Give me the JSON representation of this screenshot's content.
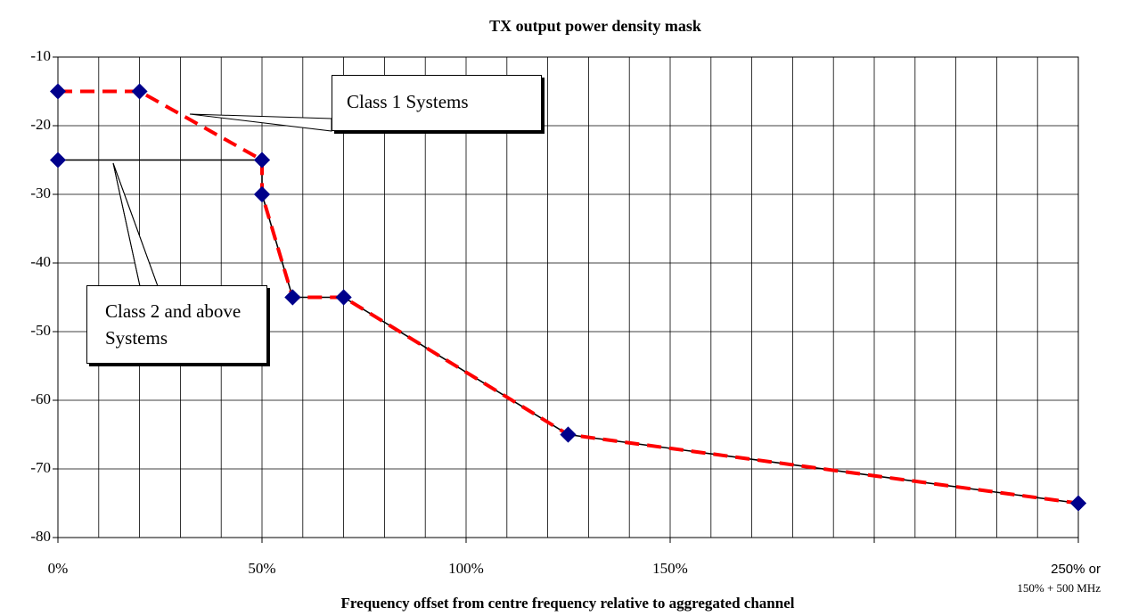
{
  "chart_data": {
    "type": "line",
    "title": "TX output power density mask",
    "x_label": "Frequency offset from centre frequency relative to aggregated channel",
    "xlim": [
      0,
      250
    ],
    "ylim": [
      -80,
      -10
    ],
    "xticks": [
      {
        "value": 0,
        "label": "0%"
      },
      {
        "value": 50,
        "label": "50%"
      },
      {
        "value": 100,
        "label": "100%"
      },
      {
        "value": 150,
        "label": "150%"
      },
      {
        "value": 200,
        "label": null
      },
      {
        "value": 250,
        "label": "250% or",
        "label2": "150% + 500 MHz"
      }
    ],
    "xgrid": [
      0,
      10,
      20,
      30,
      40,
      50,
      60,
      70,
      80,
      90,
      100,
      110,
      120,
      130,
      140,
      150,
      160,
      170,
      180,
      190,
      200,
      210,
      220,
      230,
      240,
      250
    ],
    "yticks": [
      -10,
      -20,
      -30,
      -40,
      -50,
      -60,
      -70,
      -80
    ],
    "grid": true,
    "marker_color": "#00008b",
    "series": [
      {
        "name": "Class 1 Systems",
        "color": "#ff0000",
        "dashed": true,
        "x": [
          0,
          20,
          50,
          50,
          57.5,
          70,
          125,
          250
        ],
        "values": [
          -15,
          -15,
          -25,
          -30,
          -45,
          -45,
          -65,
          -75
        ]
      },
      {
        "name": "Class 2 and above Systems",
        "color": "#000000",
        "dashed": false,
        "x": [
          0,
          50,
          50,
          57.5,
          70,
          125,
          250
        ],
        "values": [
          -25,
          -25,
          -30,
          -45,
          -45,
          -65,
          -75
        ]
      }
    ]
  }
}
